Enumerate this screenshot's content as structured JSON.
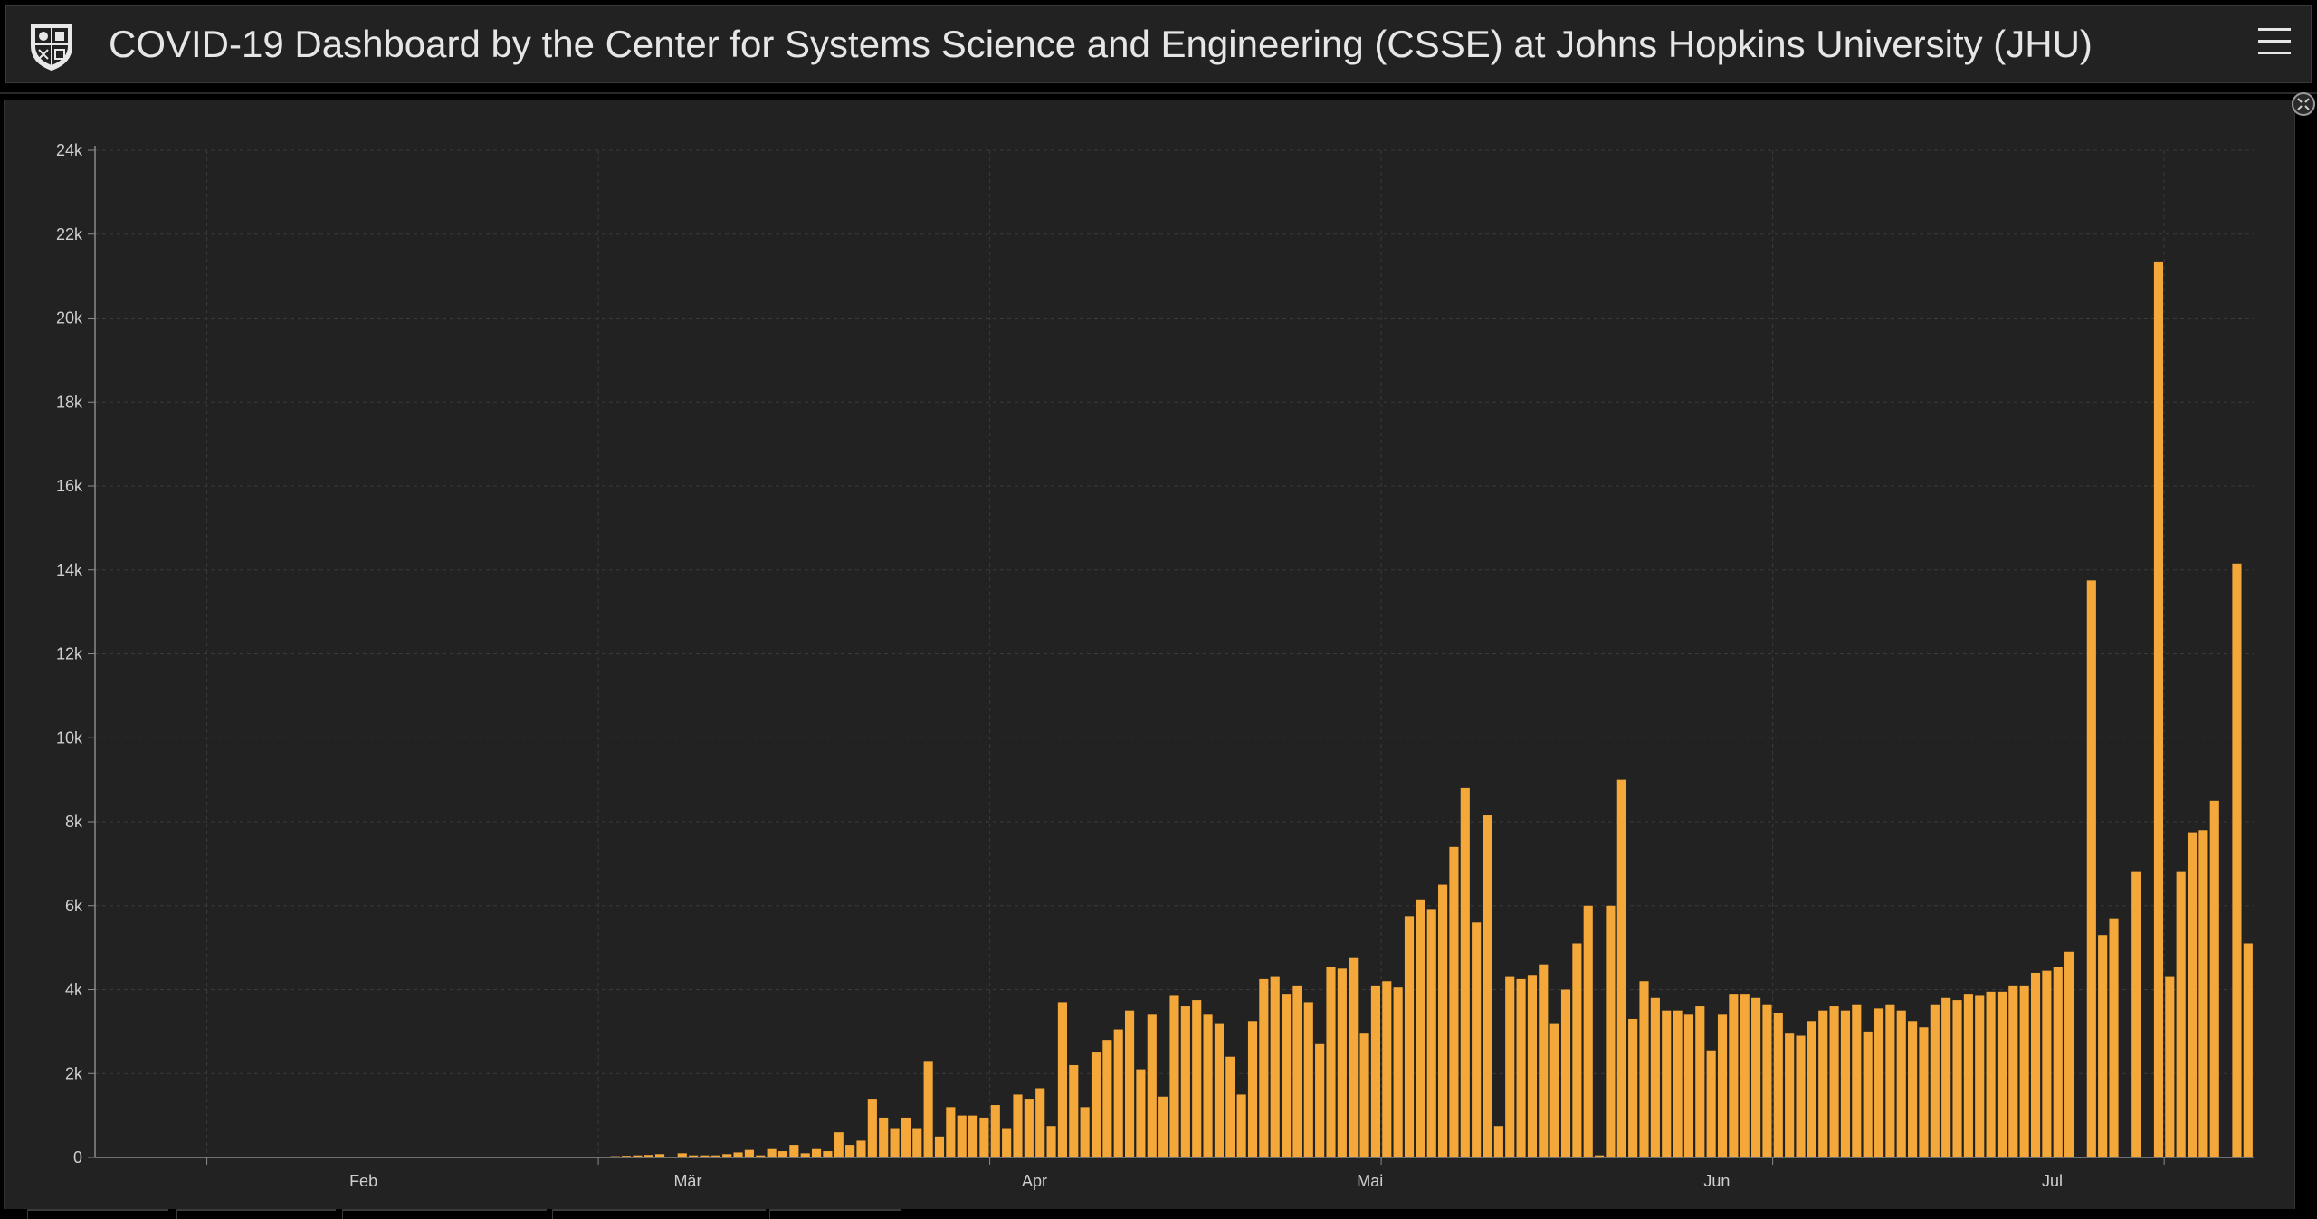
{
  "header": {
    "title": "COVID-19 Dashboard by the Center for Systems Science and Engineering (CSSE) at Johns Hopkins University (JHU)"
  },
  "icons": {
    "logo": "jhu-shield-icon",
    "menu": "hamburger-menu-icon",
    "collapse": "collapse-icon"
  },
  "colors": {
    "bar": "#f5a83a",
    "background": "#222222",
    "grid": "#3b3b3b"
  },
  "chart_data": {
    "type": "bar",
    "title": "",
    "xlabel": "",
    "ylabel": "",
    "grid": true,
    "ylim": [
      0,
      24000
    ],
    "yticks": [
      0,
      2000,
      4000,
      6000,
      8000,
      10000,
      12000,
      14000,
      16000,
      18000,
      20000,
      22000,
      24000
    ],
    "ytick_labels": [
      "0",
      "2k",
      "4k",
      "6k",
      "8k",
      "10k",
      "12k",
      "14k",
      "16k",
      "18k",
      "20k",
      "22k",
      "24k"
    ],
    "xtick_labels": [
      "Feb",
      "Mär",
      "Apr",
      "Mai",
      "Jun",
      "Jul"
    ],
    "x_start": "2020-01-22",
    "series": [
      {
        "values": [
          0,
          0,
          0,
          0,
          0,
          0,
          0,
          0,
          0,
          0,
          0,
          0,
          0,
          0,
          0,
          0,
          0,
          0,
          0,
          0,
          0,
          0,
          0,
          0,
          0,
          0,
          0,
          0,
          0,
          0,
          0,
          0,
          0,
          0,
          0,
          0,
          0,
          0,
          0,
          0,
          0,
          0,
          0,
          0,
          10,
          20,
          30,
          40,
          50,
          60,
          80,
          20,
          100,
          50,
          50,
          50,
          80,
          120,
          180,
          50,
          200,
          150,
          300,
          100,
          200,
          150,
          600,
          300,
          400,
          1400,
          950,
          700,
          950,
          700,
          2300,
          500,
          1200,
          1000,
          1000,
          950,
          1250,
          700,
          1500,
          1400,
          1650,
          750,
          3700,
          2200,
          1200,
          2500,
          2800,
          3050,
          3500,
          2100,
          3400,
          1450,
          3850,
          3600,
          3750,
          3400,
          3200,
          2400,
          1500,
          3250,
          4250,
          4300,
          3900,
          4100,
          3700,
          2700,
          4550,
          4500,
          4750,
          2950,
          4100,
          4200,
          4050,
          5750,
          6150,
          5900,
          6500,
          7400,
          8800,
          5600,
          8150,
          750,
          4300,
          4250,
          4350,
          4600,
          3200,
          4000,
          5100,
          6000,
          50,
          6000,
          9000,
          3300,
          4200,
          3800,
          3500,
          3500,
          3400,
          3600,
          2550,
          3400,
          3900,
          3900,
          3800,
          3650,
          3450,
          2950,
          2900,
          3250,
          3500,
          3600,
          3500,
          3650,
          3000,
          3550,
          3650,
          3500,
          3250,
          3100,
          3650,
          3800,
          3750,
          3900,
          3850,
          3950,
          3950,
          4100,
          4100,
          4400,
          4450,
          4550,
          4900,
          0,
          13750,
          5300,
          5700,
          0,
          6800,
          0,
          21350,
          4300,
          6800,
          7750,
          7800,
          8500,
          0,
          14150,
          5100
        ]
      }
    ]
  }
}
